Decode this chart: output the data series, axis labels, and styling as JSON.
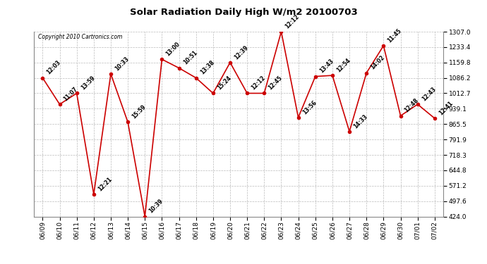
{
  "title": "Solar Radiation Daily High W/m2 20100703",
  "copyright": "Copyright 2010 Cartronics.com",
  "x_labels": [
    "06/09",
    "06/10",
    "06/11",
    "06/12",
    "06/13",
    "06/14",
    "06/15",
    "06/16",
    "06/17",
    "06/18",
    "06/19",
    "06/20",
    "06/21",
    "06/22",
    "06/23",
    "06/24",
    "06/25",
    "06/26",
    "06/27",
    "06/28",
    "06/29",
    "06/30",
    "07/01",
    "07/02"
  ],
  "y_values": [
    1086.2,
    960.0,
    1012.7,
    530.0,
    1105.0,
    875.0,
    424.0,
    1175.0,
    1133.4,
    1086.2,
    1012.7,
    1159.8,
    1012.7,
    1012.7,
    1307.0,
    897.0,
    1093.0,
    1098.0,
    830.0,
    1110.0,
    1240.0,
    905.0,
    960.0,
    893.0
  ],
  "point_labels": [
    "12:03",
    "11:07",
    "13:59",
    "12:21",
    "10:33",
    "15:59",
    "10:39",
    "13:00",
    "10:51",
    "13:38",
    "15:24",
    "12:39",
    "12:12",
    "12:45",
    "12:12",
    "13:56",
    "13:43",
    "12:54",
    "14:33",
    "14:02",
    "11:45",
    "12:48",
    "12:43",
    "12:41"
  ],
  "line_color": "#cc0000",
  "marker_color": "#cc0000",
  "bg_color": "#ffffff",
  "grid_color": "#bbbbbb",
  "y_min": 424.0,
  "y_max": 1307.0,
  "y_ticks": [
    424.0,
    497.6,
    571.2,
    644.8,
    718.3,
    791.9,
    865.5,
    939.1,
    1012.7,
    1086.2,
    1159.8,
    1233.4,
    1307.0
  ]
}
